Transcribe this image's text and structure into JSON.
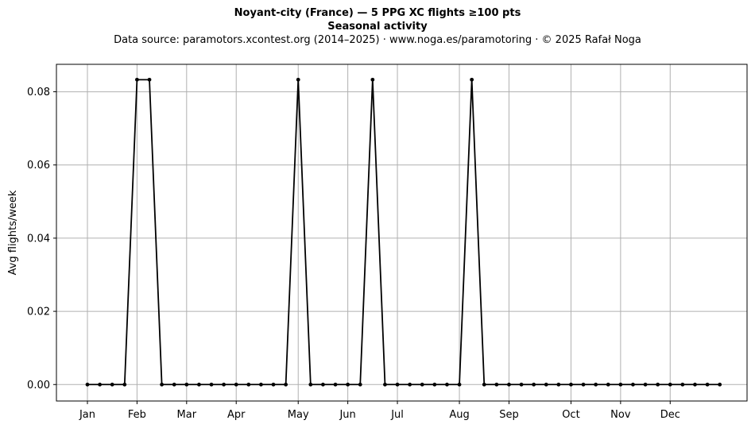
{
  "header": {
    "title": "Noyant-city (France)  —  5 PPG XC flights ≥100 pts",
    "subtitle": "Seasonal activity",
    "source": "Data source: paramotors.xcontest.org (2014–2025)  ·  www.noga.es/paramotoring  ·  © 2025 Rafał Noga"
  },
  "chart_data": {
    "type": "line",
    "title": "Noyant-city (France)  —  5 PPG XC flights ≥100 pts",
    "subtitle": "Seasonal activity",
    "xlabel": "",
    "ylabel": "Avg flights/week",
    "x_unit": "week",
    "xlim": [
      -2.5,
      53.2
    ],
    "ylim": [
      -0.0045,
      0.0875
    ],
    "grid": true,
    "line_color": "#000000",
    "grid_color": "#b0b0b0",
    "month_ticks": [
      {
        "label": "Jan",
        "week": 0
      },
      {
        "label": "Feb",
        "week": 4
      },
      {
        "label": "Mar",
        "week": 8
      },
      {
        "label": "Apr",
        "week": 12
      },
      {
        "label": "May",
        "week": 17
      },
      {
        "label": "Jun",
        "week": 21
      },
      {
        "label": "Jul",
        "week": 25
      },
      {
        "label": "Aug",
        "week": 30
      },
      {
        "label": "Sep",
        "week": 34
      },
      {
        "label": "Oct",
        "week": 39
      },
      {
        "label": "Nov",
        "week": 43
      },
      {
        "label": "Dec",
        "week": 47
      }
    ],
    "y_ticks": [
      "0.00",
      "0.02",
      "0.04",
      "0.06",
      "0.08"
    ],
    "y_tick_values": [
      0,
      0.02,
      0.04,
      0.06,
      0.08
    ],
    "series": [
      {
        "x": [
          0,
          1,
          2,
          3,
          4,
          5,
          6,
          7,
          8,
          9,
          10,
          11,
          12,
          13,
          14,
          15,
          16,
          17,
          18,
          19,
          20,
          21,
          22,
          23,
          24,
          25,
          26,
          27,
          28,
          29,
          30,
          31,
          32,
          33,
          34,
          35,
          36,
          37,
          38,
          39,
          40,
          41,
          42,
          43,
          44,
          45,
          46,
          47,
          48,
          49,
          50,
          51
        ],
        "values": [
          0,
          0,
          0,
          0,
          0.0833,
          0.0833,
          0,
          0,
          0,
          0,
          0,
          0,
          0,
          0,
          0,
          0,
          0,
          0.0833,
          0,
          0,
          0,
          0,
          0,
          0.0833,
          0,
          0,
          0,
          0,
          0,
          0,
          0,
          0.0833,
          0,
          0,
          0,
          0,
          0,
          0,
          0,
          0,
          0,
          0,
          0,
          0,
          0,
          0,
          0,
          0,
          0,
          0,
          0,
          0
        ]
      }
    ]
  }
}
